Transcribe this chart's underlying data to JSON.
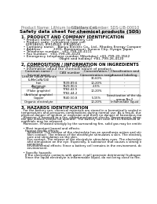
{
  "bg_color": "#ffffff",
  "header_top_left": "Product Name: Lithium Ion Battery Cell",
  "header_top_right": "Substance number: SDS-LIB-00010\nEstablished / Revision: Dec.1.2010",
  "main_title": "Safety data sheet for chemical products (SDS)",
  "section1_title": "1. PRODUCT AND COMPANY IDENTIFICATION",
  "section1_lines": [
    "  • Product name: Lithium Ion Battery Cell",
    "  • Product code: Cylindrical-type cell",
    "    (IFR18650, IFR14500, IFR16604)",
    "  • Company name:   Banyu Electric Co., Ltd., Rhodes Energy Company",
    "  • Address:           2201, Kamimatsuri, Sunoco City, Hyogo, Japan",
    "  • Telephone number:  +81-799-20-4111",
    "  • Fax number:  +81-799-26-4120",
    "  • Emergency telephone number (Weekday) +81-799-20-3562",
    "                                   (Night and holiday) +81-799-26-4120"
  ],
  "section2_title": "2. COMPOSITION / INFORMATION ON INGREDIENTS",
  "section2_intro": "  • Substance or preparation: Preparation",
  "section2_sub": "  • Information about the chemical nature of product:",
  "table_col_names": [
    "Common name /\nSeveral name",
    "CAS number",
    "Concentration /\nConcentration range",
    "Classification and\nhazard labeling"
  ],
  "table_rows": [
    [
      "Lithium cobalt tentride\n(LiMnCoNi/O4)",
      "-",
      "30-60%",
      "-"
    ],
    [
      "Iron",
      "7439-89-6",
      "10-20%",
      "-"
    ],
    [
      "Aluminum",
      "7429-90-5",
      "2-5%",
      "-"
    ],
    [
      "Graphite\n(Flake graphite)\n(Artificial graphite)",
      "7782-42-5\n7782-44-2",
      "10-20%",
      "-"
    ],
    [
      "Copper",
      "7440-50-8",
      "5-15%",
      "Sensitization of the skin\ngroup No.2"
    ],
    [
      "Organic electrolyte",
      "-",
      "10-20%",
      "Inflammable liquid"
    ]
  ],
  "section3_title": "3. HAZARDS IDENTIFICATION",
  "section3_body": [
    "  For the battery can, chemical materials are stored in a hermetically sealed metal case, designed to withstand",
    "temperatures and pressures-combinations during normal use. As a result, during normal use, there is no",
    "physical danger of ignition or explosion and there no danger of hazardous materials leakage.",
    "  However, if exposed to a fire, added mechanical shocks, decomposed, when electro-chemicals may release,",
    "the gas release vented (or operate). The battery can case will be breached of the pathway, hazardous",
    "materials may be released.",
    "  Moreover, if heated strongly by the surrounding fire, solid gas may be emitted.",
    "",
    "  • Most important hazard and effects:",
    "    Human health effects:",
    "      Inhalation: The release of the electrolyte has an anesthesia action and stimulates in respiratory tract.",
    "      Skin contact: The release of the electrolyte stimulates a skin. The electrolyte skin contact causes a",
    "      sore and stimulation on the skin.",
    "      Eye contact: The release of the electrolyte stimulates eyes. The electrolyte eye contact causes a sore",
    "      and stimulation on the eye. Especially, a substance that causes a strong inflammation of the eyes is",
    "      contained.",
    "      Environmental effects: Since a battery cell remains in the environment, do not throw out it into the",
    "      environment.",
    "",
    "  • Specific hazards:",
    "    If the electrolyte contacts with water, it will generate detrimental hydrogen fluoride.",
    "    Since the liquid electrolyte is inflammable liquid, do not bring close to fire."
  ],
  "line_color": "#aaaaaa",
  "text_color": "#000000",
  "header_color": "#666666",
  "fs_header": 3.5,
  "fs_title": 4.2,
  "fs_section": 3.8,
  "fs_body": 3.2,
  "fs_table": 3.0,
  "lh_body": 4.0,
  "lh_table": 4.2
}
